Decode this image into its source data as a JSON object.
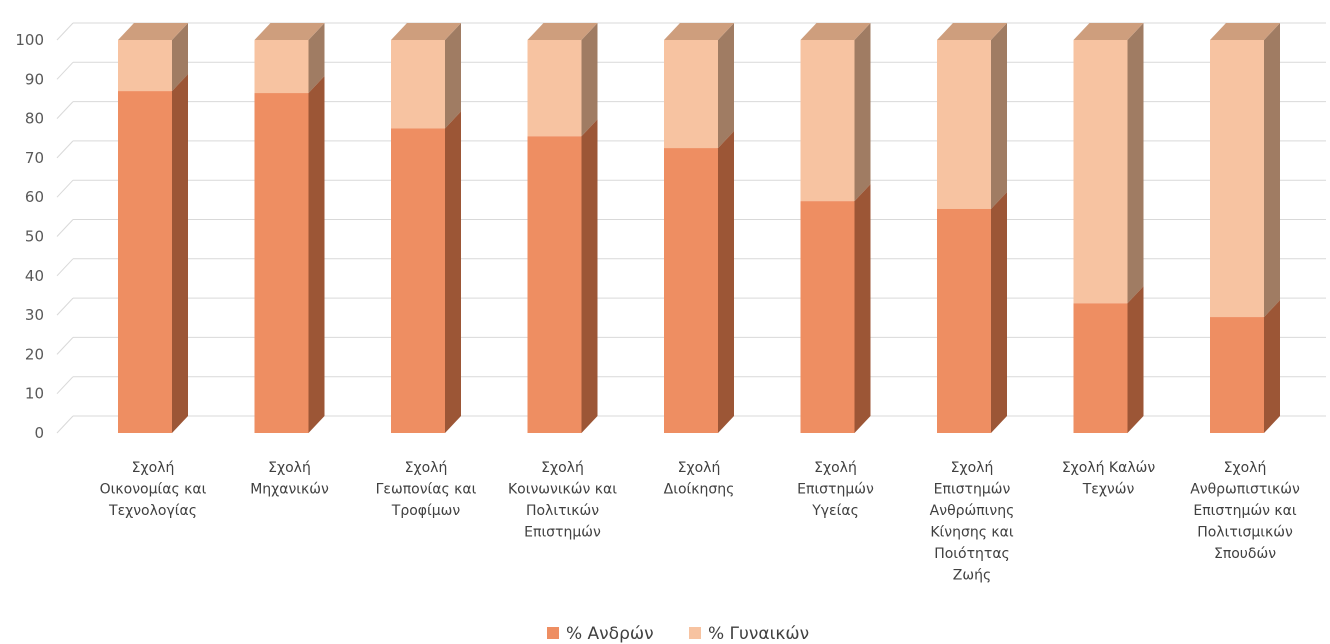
{
  "chart_data": {
    "type": "bar",
    "stacked": true,
    "three_d": true,
    "categories": [
      [
        "Σχολή",
        "Οικονομίας και",
        "Τεχνολογίας"
      ],
      [
        "Σχολή",
        "Μηχανικών"
      ],
      [
        "Σχολή",
        "Γεωπονίας και",
        "Τροφίμων"
      ],
      [
        "Σχολή",
        "Κοινωνικών και",
        "Πολιτικών",
        "Επιστημών"
      ],
      [
        "Σχολή",
        "Διοίκησης"
      ],
      [
        "Σχολή",
        "Επιστημών",
        "Υγείας"
      ],
      [
        "Σχολή",
        "Επιστημών",
        "Ανθρώπινης",
        "Κίνησης και",
        "Ποιότητας",
        "Ζωής"
      ],
      [
        "Σχολή Καλών",
        "Τεχνών"
      ],
      [
        "Σχολή",
        "Ανθρωπιστικών",
        "Επιστημών και",
        "Πολιτισμικών",
        "Σπουδών"
      ]
    ],
    "series": [
      {
        "name": "% Ανδρών",
        "values": [
          87,
          86.5,
          77.5,
          75.5,
          72.5,
          59,
          57,
          33,
          29.5
        ]
      },
      {
        "name": "% Γυναικών",
        "values": [
          13,
          13.5,
          22.5,
          24.5,
          27.5,
          41,
          43,
          67,
          70.5
        ]
      }
    ],
    "ylim": [
      0,
      100
    ],
    "yticks": [
      "0",
      "10",
      "20",
      "30",
      "40",
      "50",
      "60",
      "70",
      "80",
      "90",
      "100"
    ],
    "grid": true,
    "legend_position": "bottom",
    "colors": {
      "men_front": "#EE8E62",
      "men_side": "#9C5636",
      "men_top": "#C57046",
      "women_front": "#F7C3A1",
      "women_side": "#A07C63",
      "women_top": "#CE9E7D",
      "grid": "#D9D9D9"
    }
  }
}
